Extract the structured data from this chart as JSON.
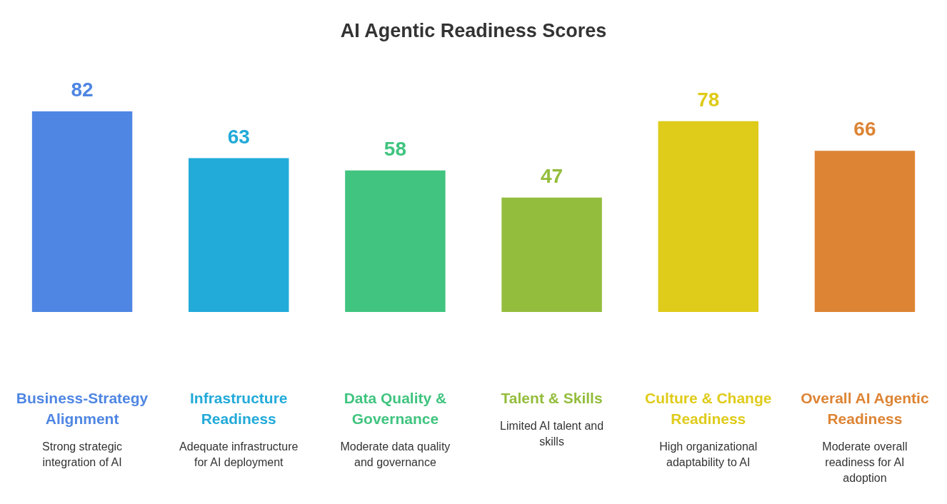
{
  "chart_data": {
    "type": "bar",
    "title": "AI Agentic Readiness Scores",
    "categories": [
      "Business-Strategy Alignment",
      "Infrastructure Readiness",
      "Data Quality & Governance",
      "Talent & Skills",
      "Culture & Change Readiness",
      "Overall AI Agentic Readiness"
    ],
    "values": [
      82,
      63,
      58,
      47,
      78,
      66
    ],
    "colors": [
      "#4f86e3",
      "#22aad9",
      "#40c47f",
      "#93bd3c",
      "#dfcb1a",
      "#dd8434"
    ],
    "data_labels": true,
    "tick_labels": "x",
    "annotations": [
      "Strong strategic integration of AI",
      "Adequate infrastructure for AI deployment",
      "Moderate data quality and governance",
      "Limited AI talent and skills",
      "High organizational adaptability to AI",
      "Moderate overall readiness for AI adoption"
    ]
  }
}
